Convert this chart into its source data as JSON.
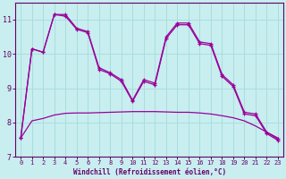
{
  "bg_color": "#c8eef0",
  "line_color": "#990099",
  "grid_color": "#aadddd",
  "axis_color": "#660066",
  "xlabel": "Windchill (Refroidissement éolien,°C)",
  "ylim": [
    7,
    11.5
  ],
  "xlim": [
    -0.5,
    23.5
  ],
  "yticks": [
    7,
    8,
    9,
    10,
    11
  ],
  "xticks": [
    0,
    1,
    2,
    3,
    4,
    5,
    6,
    7,
    8,
    9,
    10,
    11,
    12,
    13,
    14,
    15,
    16,
    17,
    18,
    19,
    20,
    21,
    22,
    23
  ],
  "line1_x": [
    0,
    1,
    2,
    3,
    4,
    5,
    6,
    7,
    8,
    9,
    10,
    11,
    12,
    13,
    14,
    15,
    16,
    17,
    18,
    19,
    20,
    21,
    22,
    23
  ],
  "line1_y": [
    7.55,
    8.05,
    8.12,
    8.22,
    8.27,
    8.28,
    8.28,
    8.29,
    8.3,
    8.31,
    8.32,
    8.32,
    8.32,
    8.31,
    8.3,
    8.3,
    8.28,
    8.25,
    8.2,
    8.14,
    8.05,
    7.9,
    7.72,
    7.55
  ],
  "line2_x": [
    0,
    1,
    2,
    3,
    4,
    5,
    6,
    7,
    8,
    9,
    10,
    11,
    12,
    13,
    14,
    15,
    16,
    17,
    18,
    19,
    20,
    21,
    22,
    23
  ],
  "line2_y": [
    7.55,
    10.15,
    10.05,
    11.15,
    11.15,
    10.75,
    10.65,
    9.6,
    9.45,
    9.25,
    8.65,
    9.25,
    9.15,
    10.5,
    10.9,
    10.9,
    10.35,
    10.3,
    9.4,
    9.1,
    8.3,
    8.25,
    7.72,
    7.52
  ],
  "line3_x": [
    0,
    1,
    2,
    3,
    4,
    5,
    6,
    7,
    8,
    9,
    10,
    11,
    12,
    13,
    14,
    15,
    16,
    17,
    18,
    19,
    20,
    21,
    22,
    23
  ],
  "line3_y": [
    7.55,
    10.15,
    10.05,
    11.15,
    11.1,
    10.72,
    10.62,
    9.55,
    9.42,
    9.2,
    8.62,
    9.2,
    9.1,
    10.45,
    10.85,
    10.85,
    10.3,
    10.25,
    9.35,
    9.05,
    8.25,
    8.2,
    7.68,
    7.48
  ]
}
